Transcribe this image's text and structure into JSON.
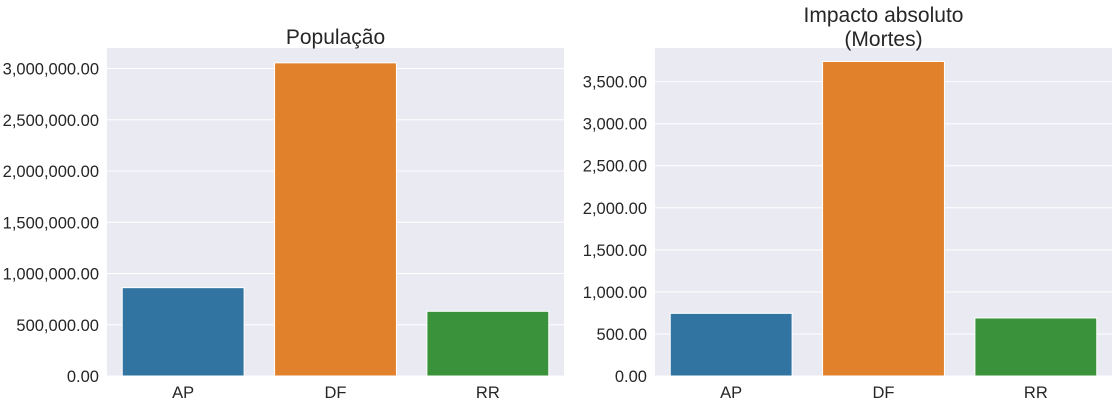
{
  "chart_data": [
    {
      "type": "bar",
      "title_lines": [
        "População"
      ],
      "categories": [
        "AP",
        "DF",
        "RR"
      ],
      "values": [
        861773,
        3055149,
        631181
      ],
      "ylim": [
        0,
        3200000
      ],
      "yticks": [
        0,
        500000,
        1000000,
        1500000,
        2000000,
        2500000,
        3000000
      ],
      "ytick_labels": [
        "0.00",
        "500,000.00",
        "1,000,000.00",
        "1,500,000.00",
        "2,000,000.00",
        "2,500,000.00",
        "3,000,000.00"
      ],
      "colors": [
        "#3274a1",
        "#e1812c",
        "#3a923a"
      ],
      "grid": true,
      "background": "#eaeaf2"
    },
    {
      "type": "bar",
      "title_lines": [
        "Impacto absoluto",
        "(Mortes)"
      ],
      "categories": [
        "AP",
        "DF",
        "RR"
      ],
      "values": [
        745,
        3740,
        690
      ],
      "ylim": [
        0,
        3900
      ],
      "yticks": [
        0,
        500,
        1000,
        1500,
        2000,
        2500,
        3000,
        3500
      ],
      "ytick_labels": [
        "0.00",
        "500.00",
        "1,000.00",
        "1,500.00",
        "2,000.00",
        "2,500.00",
        "3,000.00",
        "3,500.00"
      ],
      "colors": [
        "#3274a1",
        "#e1812c",
        "#3a923a"
      ],
      "grid": true,
      "background": "#eaeaf2"
    }
  ]
}
